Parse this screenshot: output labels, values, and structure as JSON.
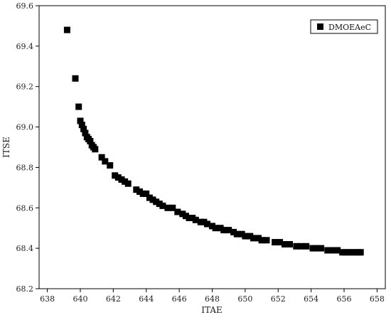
{
  "chart_data": {
    "type": "scatter",
    "xlabel": "ITAE",
    "ylabel": "ITSE",
    "xlim": [
      637.5,
      658.5
    ],
    "ylim": [
      68.2,
      69.6
    ],
    "xticks": [
      "638",
      "640",
      "642",
      "644",
      "646",
      "648",
      "650",
      "652",
      "654",
      "656",
      "658"
    ],
    "yticks": [
      "68.2",
      "68.4",
      "68.6",
      "68.8",
      "69.0",
      "69.2",
      "69.4",
      "69.6"
    ],
    "legend_position": "top-right",
    "grid": false,
    "colors": {
      "marker": "#000000",
      "axis": "#000000"
    },
    "series": [
      {
        "name": "DMOEAeC",
        "marker": "square",
        "x": [
          639.2,
          639.7,
          639.9,
          640.0,
          640.1,
          640.2,
          640.3,
          640.4,
          640.5,
          640.6,
          640.7,
          640.8,
          640.9,
          641.3,
          641.5,
          641.8,
          642.1,
          642.3,
          642.5,
          642.7,
          642.9,
          643.4,
          643.6,
          643.8,
          644.0,
          644.2,
          644.4,
          644.6,
          644.8,
          645.0,
          645.3,
          645.6,
          645.9,
          646.2,
          646.4,
          646.6,
          646.8,
          647.0,
          647.3,
          647.5,
          647.7,
          648.0,
          648.2,
          648.5,
          648.7,
          649.0,
          649.3,
          649.5,
          649.8,
          650.0,
          650.3,
          650.5,
          650.8,
          651.0,
          651.3,
          651.8,
          652.1,
          652.4,
          652.7,
          653.1,
          653.4,
          653.7,
          654.1,
          654.3,
          654.6,
          655.0,
          655.2,
          655.4,
          655.6,
          655.9,
          656.1,
          656.3,
          656.5,
          656.7,
          656.9,
          657.0
        ],
        "y": [
          69.48,
          69.24,
          69.1,
          69.03,
          69.01,
          68.99,
          68.97,
          68.95,
          68.94,
          68.93,
          68.91,
          68.9,
          68.89,
          68.85,
          68.83,
          68.81,
          68.76,
          68.75,
          68.74,
          68.73,
          68.72,
          68.69,
          68.68,
          68.67,
          68.67,
          68.65,
          68.64,
          68.63,
          68.62,
          68.61,
          68.6,
          68.6,
          68.58,
          68.57,
          68.56,
          68.55,
          68.55,
          68.54,
          68.53,
          68.53,
          68.52,
          68.51,
          68.5,
          68.5,
          68.49,
          68.49,
          68.48,
          68.47,
          68.47,
          68.46,
          68.46,
          68.45,
          68.45,
          68.44,
          68.44,
          68.43,
          68.43,
          68.42,
          68.42,
          68.41,
          68.41,
          68.41,
          68.4,
          68.4,
          68.4,
          68.39,
          68.39,
          68.39,
          68.39,
          68.38,
          68.38,
          68.38,
          68.38,
          68.38,
          68.38,
          68.38
        ]
      }
    ]
  }
}
